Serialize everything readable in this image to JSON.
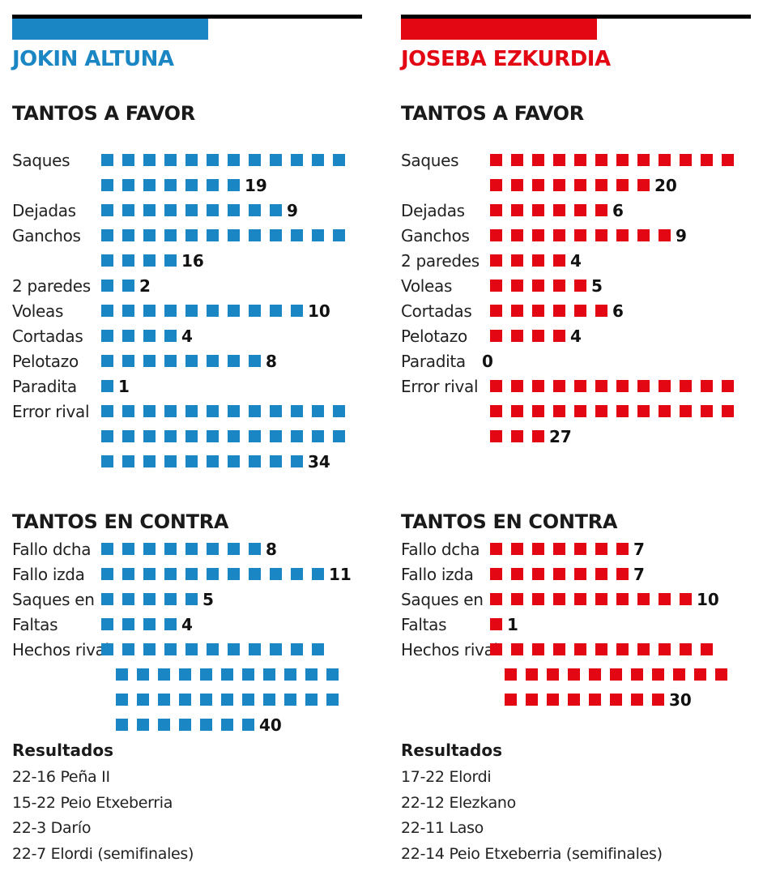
{
  "players": [
    {
      "name": "JOKIN ALTUNA",
      "color": "#1a87c4",
      "favor_title": "TANTOS A FAVOR",
      "contra_title": "TANTOS EN CONTRA",
      "results_title": "Resultados",
      "results": [
        "22-16 Peña II",
        "15-22 Peio Etxeberria",
        "22-3 Darío",
        "22-7 Elordi (semifinales)"
      ]
    },
    {
      "name": "JOSEBA EZKURDIA",
      "color": "#e30613",
      "favor_title": "TANTOS A FAVOR",
      "contra_title": "TANTOS EN CONTRA",
      "results_title": "Resultados",
      "results": [
        "17-22 Elordi",
        "22-12 Elezkano",
        "22-11 Laso",
        "22-14 Peio Etxeberria (semifinales)"
      ]
    }
  ],
  "chart_data": [
    {
      "type": "bar",
      "title": "TANTOS A FAVOR",
      "series": [
        {
          "name": "JOKIN ALTUNA",
          "categories": [
            "Saques",
            "Dejadas",
            "Ganchos",
            "2 paredes",
            "Voleas",
            "Cortadas",
            "Pelotazo",
            "Paradita",
            "Error rival"
          ],
          "values": [
            19,
            9,
            16,
            2,
            10,
            4,
            8,
            1,
            34
          ]
        },
        {
          "name": "JOSEBA EZKURDIA",
          "categories": [
            "Saques",
            "Dejadas",
            "Ganchos",
            "2 paredes",
            "Voleas",
            "Cortadas",
            "Pelotazo",
            "Paradita",
            "Error rival"
          ],
          "values": [
            20,
            6,
            9,
            4,
            5,
            6,
            4,
            0,
            27
          ]
        }
      ]
    },
    {
      "type": "bar",
      "title": "TANTOS EN CONTRA",
      "series": [
        {
          "name": "JOKIN ALTUNA",
          "categories": [
            "Fallo dcha",
            "Fallo izda",
            "Saques en",
            "Faltas",
            "Hechos rival"
          ],
          "values": [
            8,
            11,
            5,
            4,
            40
          ]
        },
        {
          "name": "JOSEBA EZKURDIA",
          "categories": [
            "Fallo dcha",
            "Fallo izda",
            "Saques en",
            "Faltas",
            "Hechos rival"
          ],
          "values": [
            7,
            7,
            10,
            1,
            30
          ]
        }
      ]
    }
  ]
}
